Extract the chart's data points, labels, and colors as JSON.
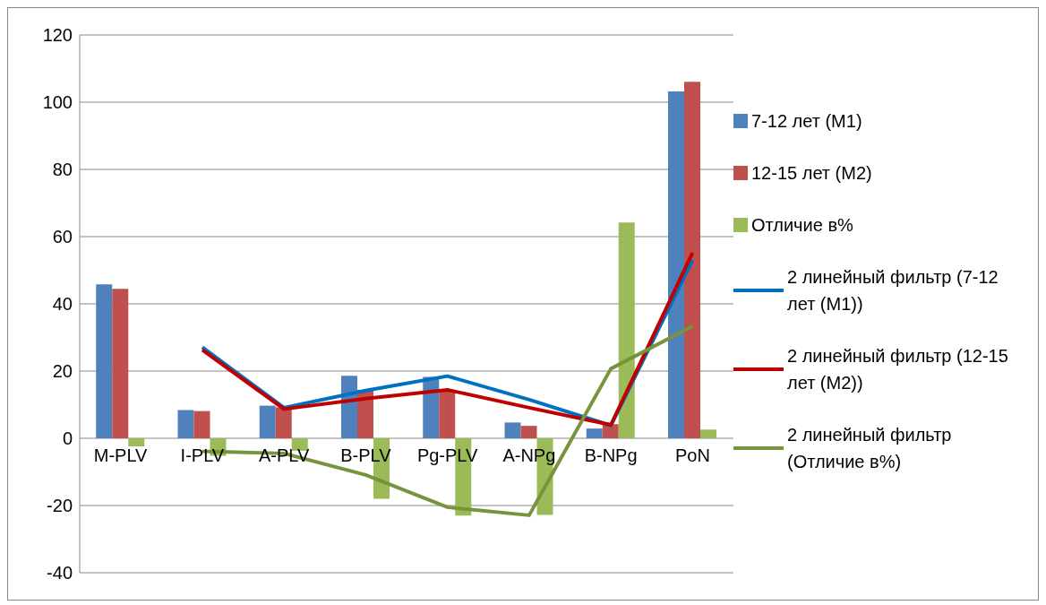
{
  "chart_data": {
    "type": "bar",
    "categories": [
      "M-PLV",
      "I-PLV",
      "A-PLV",
      "B-PLV",
      "Pg-PLV",
      "A-NPg",
      "B-NPg",
      "PoN"
    ],
    "series": [
      {
        "name": "7-12 лет (M1)",
        "color": "#4f81bd",
        "values": [
          45.8,
          8.4,
          9.7,
          18.6,
          18.3,
          4.7,
          2.9,
          103.2
        ]
      },
      {
        "name": "12-15 лет (M2)",
        "color": "#c0504d",
        "values": [
          44.5,
          8.1,
          9.2,
          14.4,
          14.4,
          3.7,
          4.2,
          106.1
        ]
      },
      {
        "name": "Отличие в%",
        "color": "#9bbb59",
        "values": [
          -2.4,
          -5.2,
          -3.7,
          -18,
          -23,
          -22.8,
          64.2,
          2.6
        ]
      },
      {
        "name": "2 линейный фильтр (7-12 лет (M1))",
        "type": "line",
        "color": "#0070c0",
        "values": [
          null,
          27.1,
          9.1,
          14.2,
          18.5,
          11.5,
          3.8,
          53
        ]
      },
      {
        "name": "2 линейный фильтр (12-15 лет (M2))",
        "type": "line",
        "color": "#c00000",
        "values": [
          null,
          26.3,
          8.7,
          11.8,
          14.4,
          9.1,
          4,
          55.2
        ]
      },
      {
        "name": "2 линейный фильтр (Отличие в%)",
        "type": "line",
        "color": "#77933c",
        "values": [
          null,
          -3.9,
          -4.5,
          -10.9,
          -20.5,
          -22.9,
          20.7,
          33.4
        ]
      }
    ],
    "ylim": [
      -40,
      120
    ],
    "yticks": [
      -40,
      -20,
      0,
      20,
      40,
      60,
      80,
      100,
      120
    ],
    "grid": "y",
    "legend": "right",
    "marker": "none",
    "line_style": "solid"
  }
}
